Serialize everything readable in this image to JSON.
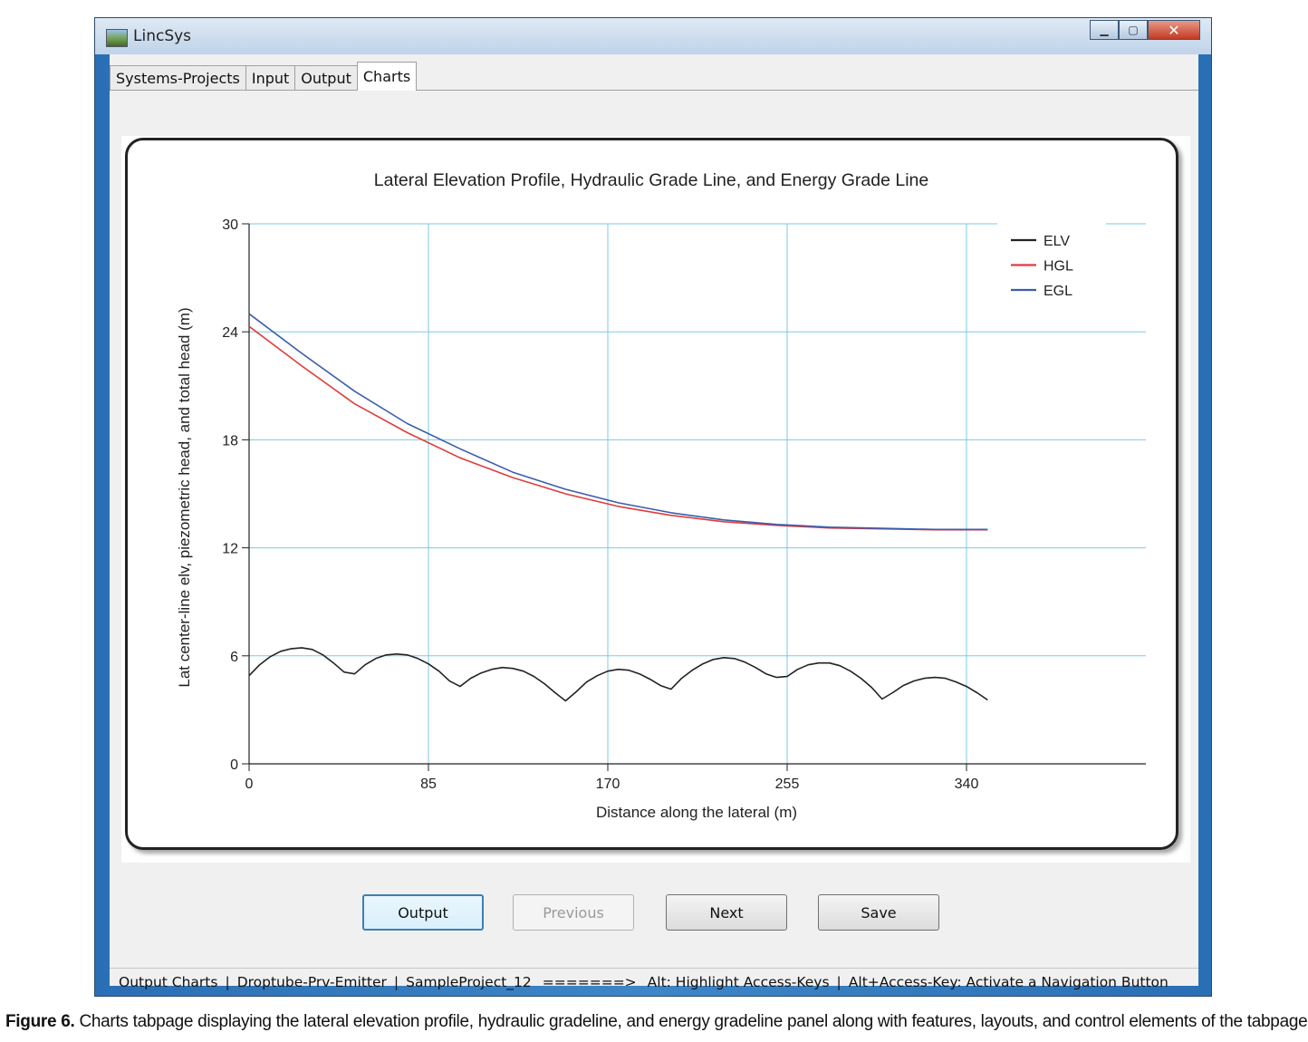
{
  "window": {
    "title": "LincSys"
  },
  "tabs": [
    {
      "label": "Systems-Projects",
      "active": false
    },
    {
      "label": "Input",
      "active": false
    },
    {
      "label": "Output",
      "active": false
    },
    {
      "label": "Charts",
      "active": true
    }
  ],
  "buttons": {
    "output": "Output",
    "previous": "Previous",
    "next": "Next",
    "save": "Save"
  },
  "status": {
    "page": "Output Charts",
    "system": "Droptube-Prv-Emitter",
    "project": "SampleProject_12",
    "arrow": "=======>",
    "hint1": "Alt: Highlight Access-Keys",
    "hint2": "Alt+Access-Key: Activate a Navigation Button",
    "separator": "|"
  },
  "caption": {
    "label": "Figure 6.",
    "text": " Charts tabpage displaying the lateral elevation profile, hydraulic gradeline, and energy gradeline panel along with features, layouts, and control elements of the tabpage"
  },
  "colors": {
    "elv": "#222222",
    "hgl": "#e03c3c",
    "egl": "#3a5dae",
    "grid": "#7ec8e3"
  },
  "chart_data": {
    "type": "line",
    "title": "Lateral Elevation Profile, Hydraulic Grade Line, and Energy Grade Line",
    "xlabel": "Distance along the lateral (m)",
    "ylabel": "Lat center-line elv, piezometric head, and total head (m)",
    "xlim": [
      0,
      425
    ],
    "ylim": [
      0,
      30
    ],
    "xticks": [
      0,
      85,
      170,
      255,
      340
    ],
    "yticks": [
      0,
      6,
      12,
      18,
      24,
      30
    ],
    "grid": true,
    "legend": "top-right",
    "series": [
      {
        "name": "ELV",
        "x": [
          0,
          5,
          10,
          15,
          20,
          25,
          30,
          35,
          40,
          45,
          50,
          55,
          60,
          65,
          70,
          75,
          80,
          85,
          90,
          95,
          100,
          105,
          110,
          115,
          120,
          125,
          130,
          135,
          140,
          145,
          150,
          155,
          160,
          165,
          170,
          175,
          180,
          185,
          190,
          195,
          200,
          205,
          210,
          215,
          220,
          225,
          230,
          235,
          240,
          245,
          250,
          255,
          260,
          265,
          270,
          275,
          280,
          285,
          290,
          295,
          300,
          305,
          310,
          315,
          320,
          325,
          330,
          335,
          340,
          345,
          350
        ],
        "y": [
          4.9,
          5.5,
          5.95,
          6.25,
          6.4,
          6.45,
          6.35,
          6.05,
          5.6,
          5.1,
          5.0,
          5.5,
          5.85,
          6.05,
          6.1,
          6.05,
          5.85,
          5.55,
          5.15,
          4.6,
          4.3,
          4.75,
          5.05,
          5.25,
          5.35,
          5.3,
          5.15,
          4.85,
          4.45,
          3.95,
          3.5,
          4.0,
          4.55,
          4.9,
          5.15,
          5.25,
          5.2,
          5.0,
          4.7,
          4.35,
          4.15,
          4.75,
          5.2,
          5.55,
          5.8,
          5.9,
          5.85,
          5.65,
          5.35,
          5.0,
          4.8,
          4.85,
          5.25,
          5.5,
          5.6,
          5.6,
          5.45,
          5.15,
          4.75,
          4.25,
          3.6,
          3.95,
          4.35,
          4.6,
          4.75,
          4.8,
          4.75,
          4.55,
          4.3,
          3.95,
          3.55
        ]
      },
      {
        "name": "HGL",
        "x": [
          0,
          25,
          50,
          75,
          100,
          125,
          150,
          175,
          200,
          225,
          250,
          275,
          300,
          325,
          350
        ],
        "y": [
          24.3,
          22.1,
          20.0,
          18.4,
          17.0,
          15.9,
          15.0,
          14.3,
          13.8,
          13.45,
          13.25,
          13.1,
          13.05,
          13.0,
          13.0
        ]
      },
      {
        "name": "EGL",
        "x": [
          0,
          25,
          50,
          75,
          100,
          125,
          150,
          175,
          200,
          225,
          250,
          275,
          300,
          325,
          350
        ],
        "y": [
          25.0,
          22.8,
          20.7,
          18.9,
          17.5,
          16.2,
          15.25,
          14.5,
          13.95,
          13.55,
          13.3,
          13.15,
          13.08,
          13.02,
          13.02
        ]
      }
    ]
  }
}
